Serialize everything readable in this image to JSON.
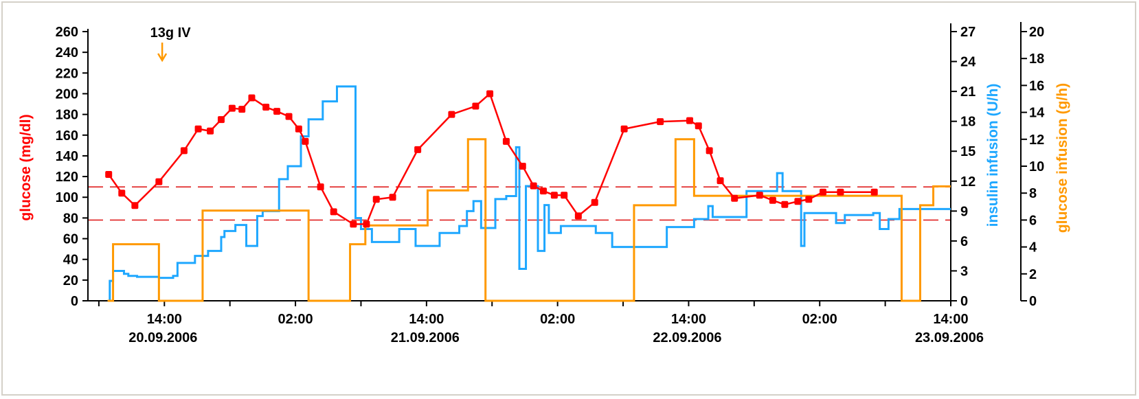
{
  "chart_data": {
    "type": "line",
    "annotation": "13g IV",
    "x_ticks": [
      {
        "time": "14:00",
        "date": "20.09.2006",
        "hour": 14
      },
      {
        "time": "02:00",
        "date": "",
        "hour": 26
      },
      {
        "time": "14:00",
        "date": "21.09.2006",
        "hour": 38
      },
      {
        "time": "02:00",
        "date": "",
        "hour": 50
      },
      {
        "time": "14:00",
        "date": "22.09.2006",
        "hour": 62
      },
      {
        "time": "02:00",
        "date": "",
        "hour": 74
      },
      {
        "time": "14:00",
        "date": "23.09.2006",
        "hour": 86
      }
    ],
    "x_unit_note": "",
    "xlim": [
      7,
      86
    ],
    "axes": {
      "glucose": {
        "label": "glucose (mg/dl)",
        "ylim": [
          0,
          260
        ],
        "ticks": [
          0,
          20,
          40,
          60,
          80,
          100,
          120,
          140,
          160,
          180,
          200,
          220,
          240,
          260
        ],
        "color": "#ff0000"
      },
      "insulin": {
        "label": "insulin infusion (U/h)",
        "ylim": [
          0,
          27
        ],
        "ticks": [
          0,
          3,
          6,
          9,
          12,
          15,
          18,
          21,
          24,
          27
        ],
        "color": "#1ea7ff"
      },
      "glucose_infusion": {
        "label": "glucose infusion (g/h)",
        "ylim": [
          0,
          20
        ],
        "ticks": [
          0,
          2,
          4,
          6,
          8,
          10,
          12,
          14,
          16,
          18,
          20
        ],
        "color": "#ff9900"
      }
    },
    "reference_lines": [
      110,
      78
    ],
    "series": [
      {
        "axis": "glucose",
        "kind": "line-markers",
        "color": "#ff0000",
        "x": [
          8.9,
          10.1,
          11.3,
          13.5,
          15.8,
          17.1,
          18.2,
          19.2,
          20.2,
          21.1,
          22.0,
          23.3,
          24.3,
          25.4,
          26.3,
          26.9,
          28.3,
          29.5,
          31.3,
          32.5,
          33.4,
          34.9,
          37.2,
          40.3,
          42.5,
          43.8,
          45.3,
          46.8,
          47.8,
          48.7,
          49.7,
          50.6,
          51.9,
          53.4,
          56.1,
          59.4,
          62.1,
          62.9,
          63.9,
          64.9,
          66.2,
          68.5,
          69.7,
          70.8,
          72.0,
          73.0,
          74.3,
          75.9,
          79.0
        ],
        "y": [
          122,
          104,
          92,
          115,
          145,
          166,
          164,
          175,
          186,
          185,
          196,
          187,
          183,
          178,
          166,
          154,
          110,
          86,
          74,
          74,
          98,
          100,
          146,
          180,
          188,
          200,
          154,
          130,
          111,
          106,
          102,
          102,
          82,
          95,
          166,
          173,
          174,
          169,
          145,
          116,
          99,
          102,
          97,
          93,
          96,
          98,
          105,
          105,
          105
        ]
      },
      {
        "axis": "insulin",
        "kind": "step",
        "color": "#1ea7ff",
        "x": [
          8.8,
          9.0,
          9.3,
          9.8,
          10.3,
          10.7,
          11.5,
          12.3,
          13.0,
          13.5,
          14.8,
          15.2,
          16.8,
          17.3,
          18.0,
          19.2,
          19.5,
          20.5,
          21.5,
          22.5,
          23.0,
          24.5,
          25.3,
          26.5,
          27.2,
          28.5,
          29.8,
          30.8,
          31.5,
          32.0,
          33.0,
          35.5,
          37.0,
          38.5,
          39.2,
          41.0,
          41.7,
          42.3,
          43.0,
          44.3,
          45.3,
          46.2,
          46.5,
          47.1,
          48.2,
          48.8,
          49.2,
          50.0,
          50.3,
          53.5,
          55.0,
          56.3,
          60.0,
          61.9,
          62.5,
          63.8,
          64.2,
          65.3,
          67.3,
          70.1,
          70.6,
          72.3,
          72.6,
          74.2,
          75.5,
          76.3,
          78.9,
          79.5,
          80.3,
          81.3,
          83.0,
          84.1
        ],
        "y": [
          0,
          2,
          3,
          3,
          2.7,
          2.5,
          2.4,
          2.4,
          2.4,
          2.3,
          2.5,
          3.8,
          4.5,
          4.5,
          5,
          6.4,
          7,
          7.6,
          5.5,
          8.5,
          9,
          12.2,
          13.5,
          16.5,
          18.2,
          20,
          21.5,
          21.5,
          8.3,
          7.2,
          5.9,
          7.2,
          5.5,
          5.5,
          6.8,
          7.5,
          9,
          10,
          7.3,
          10.2,
          10.5,
          15.4,
          3.2,
          11.5,
          5,
          9.6,
          6.8,
          6.8,
          7.5,
          6.8,
          5.4,
          5.4,
          7.4,
          7.4,
          8.2,
          9.5,
          8.4,
          8.4,
          11,
          12.8,
          11,
          5.5,
          8.8,
          8.8,
          7.8,
          8.6,
          8.8,
          7.2,
          8.2,
          9.2,
          9.2,
          9.2
        ]
      },
      {
        "axis": "glucose_infusion",
        "kind": "step",
        "color": "#ff9900",
        "x": [
          8.8,
          9.3,
          13.2,
          13.5,
          17.5,
          27.2,
          31.0,
          32.4,
          38.1,
          41.8,
          43.4,
          55.3,
          57.0,
          60.8,
          62.5,
          81.5,
          81.9,
          83.2,
          84.4
        ],
        "y": [
          0,
          4.2,
          4.2,
          0,
          6.7,
          0,
          4.2,
          5.6,
          8.2,
          12,
          0,
          0,
          7.1,
          12,
          7.8,
          0,
          0,
          7.1,
          8.5
        ]
      }
    ]
  }
}
